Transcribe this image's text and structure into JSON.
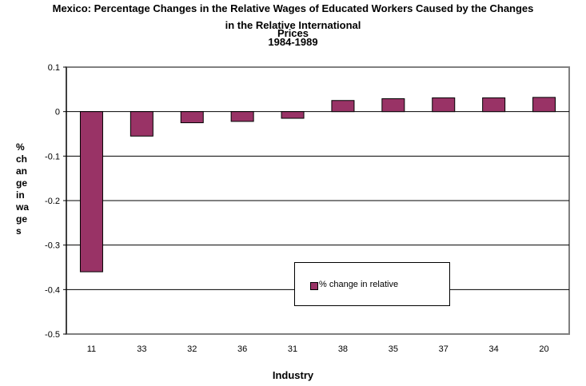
{
  "chart_data": {
    "type": "bar",
    "title_lines": [
      "Mexico: Percentage Changes in the Relative Wages of Educated Workers Caused by the Changes",
      "in the Relative International",
      "Prices",
      "1984-1989"
    ],
    "xlabel": "Industry",
    "ylabel": "%\nch\nan\nge\nin\nwa\nge\ns",
    "categories": [
      "11",
      "33",
      "32",
      "36",
      "31",
      "38",
      "35",
      "37",
      "34",
      "20"
    ],
    "series": [
      {
        "name": "% change in relative",
        "values": [
          -0.36,
          -0.055,
          -0.025,
          -0.022,
          -0.015,
          0.025,
          0.029,
          0.031,
          0.031,
          0.032
        ]
      }
    ],
    "ylim": [
      -0.5,
      0.1
    ],
    "yticks": [
      0.1,
      0,
      -0.1,
      -0.2,
      -0.3,
      -0.4,
      -0.5
    ],
    "grid": true,
    "legend_position": "bottom-right inside plot",
    "colors": {
      "bar": "#993366",
      "gridline": "#000000",
      "plot_border": "#808080"
    }
  }
}
